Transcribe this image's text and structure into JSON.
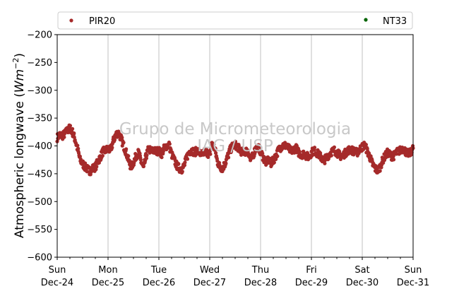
{
  "chart_data": {
    "type": "scatter",
    "ylabel": "Atmospheric longwave (",
    "ylabel_unit": {
      "base": "Wm",
      "sup": "−2",
      "close": ")"
    },
    "ylim": [
      -600,
      -200
    ],
    "yticks": [
      -200,
      -250,
      -300,
      -350,
      -400,
      -450,
      -500,
      -550,
      -600
    ],
    "xlim": [
      "2017-12-24 00:00",
      "2017-12-31 00:00"
    ],
    "xticks": [
      {
        "day": "Sun",
        "date": "Dec-24"
      },
      {
        "day": "Mon",
        "date": "Dec-25"
      },
      {
        "day": "Tue",
        "date": "Dec-26"
      },
      {
        "day": "Wed",
        "date": "Dec-27"
      },
      {
        "day": "Thu",
        "date": "Dec-28"
      },
      {
        "day": "Fri",
        "date": "Dec-29"
      },
      {
        "day": "Sat",
        "date": "Dec-30"
      },
      {
        "day": "Sun",
        "date": "Dec-31"
      }
    ],
    "grid": "x-major",
    "legend": "top, outside",
    "watermark": [
      "Grupo de Micrometeorologia",
      "IAG / USP"
    ],
    "series": [
      {
        "name": "PIR20",
        "color": "#a52a2a",
        "x_days": [
          0.0,
          0.05,
          0.1,
          0.15,
          0.2,
          0.25,
          0.3,
          0.35,
          0.4,
          0.45,
          0.5,
          0.55,
          0.6,
          0.65,
          0.7,
          0.75,
          0.8,
          0.85,
          0.9,
          0.95,
          1.0,
          1.05,
          1.1,
          1.15,
          1.2,
          1.25,
          1.3,
          1.35,
          1.4,
          1.45,
          1.5,
          1.55,
          1.6,
          1.65,
          1.7,
          1.75,
          1.8,
          1.85,
          1.9,
          1.95,
          2.0,
          2.05,
          2.1,
          2.15,
          2.2,
          2.25,
          2.3,
          2.35,
          2.4,
          2.45,
          2.5,
          2.55,
          2.6,
          2.65,
          2.7,
          2.75,
          2.8,
          2.85,
          2.9,
          2.95,
          3.0,
          3.05,
          3.1,
          3.15,
          3.2,
          3.25,
          3.3,
          3.35,
          3.4,
          3.45,
          3.5,
          3.55,
          3.6,
          3.65,
          3.7,
          3.75,
          3.8,
          3.85,
          3.9,
          3.95,
          4.0,
          4.05,
          4.1,
          4.15,
          4.2,
          4.25,
          4.3,
          4.35,
          4.4,
          4.45,
          4.5,
          4.55,
          4.6,
          4.65,
          4.7,
          4.75,
          4.8,
          4.85,
          4.9,
          4.95,
          5.0,
          5.05,
          5.1,
          5.15,
          5.2,
          5.25,
          5.3,
          5.35,
          5.4,
          5.45,
          5.5,
          5.55,
          5.6,
          5.65,
          5.7,
          5.75,
          5.8,
          5.85,
          5.9,
          5.95,
          6.0,
          6.05,
          6.1,
          6.15,
          6.2,
          6.25,
          6.3,
          6.35,
          6.4,
          6.45,
          6.5,
          6.55,
          6.6,
          6.65,
          6.7,
          6.75,
          6.8,
          6.85,
          6.9,
          6.95,
          7.0
        ],
        "values": [
          -385,
          -380,
          -382,
          -378,
          -372,
          -368,
          -375,
          -388,
          -405,
          -425,
          -432,
          -438,
          -442,
          -445,
          -440,
          -438,
          -428,
          -420,
          -410,
          -408,
          -405,
          -408,
          -392,
          -380,
          -376,
          -385,
          -398,
          -410,
          -425,
          -438,
          -430,
          -418,
          -412,
          -428,
          -440,
          -418,
          -405,
          -410,
          -408,
          -410,
          -408,
          -415,
          -405,
          -400,
          -398,
          -415,
          -425,
          -435,
          -440,
          -442,
          -435,
          -420,
          -410,
          -408,
          -412,
          -408,
          -412,
          -418,
          -410,
          -412,
          -416,
          -395,
          -405,
          -428,
          -438,
          -440,
          -432,
          -420,
          -408,
          -400,
          -398,
          -402,
          -408,
          -412,
          -410,
          -408,
          -425,
          -418,
          -405,
          -402,
          -410,
          -420,
          -430,
          -425,
          -432,
          -426,
          -418,
          -408,
          -402,
          -398,
          -400,
          -404,
          -410,
          -406,
          -404,
          -412,
          -416,
          -414,
          -418,
          -420,
          -412,
          -408,
          -412,
          -416,
          -422,
          -426,
          -420,
          -415,
          -410,
          -408,
          -412,
          -416,
          -420,
          -414,
          -410,
          -406,
          -408,
          -410,
          -412,
          -406,
          -402,
          -398,
          -410,
          -420,
          -432,
          -440,
          -444,
          -438,
          -426,
          -418,
          -412,
          -416,
          -420,
          -414,
          -410,
          -408,
          -404,
          -410,
          -414,
          -412,
          -404
        ]
      },
      {
        "name": "NT33",
        "color": "#006400",
        "x_days": [],
        "values": []
      }
    ]
  }
}
